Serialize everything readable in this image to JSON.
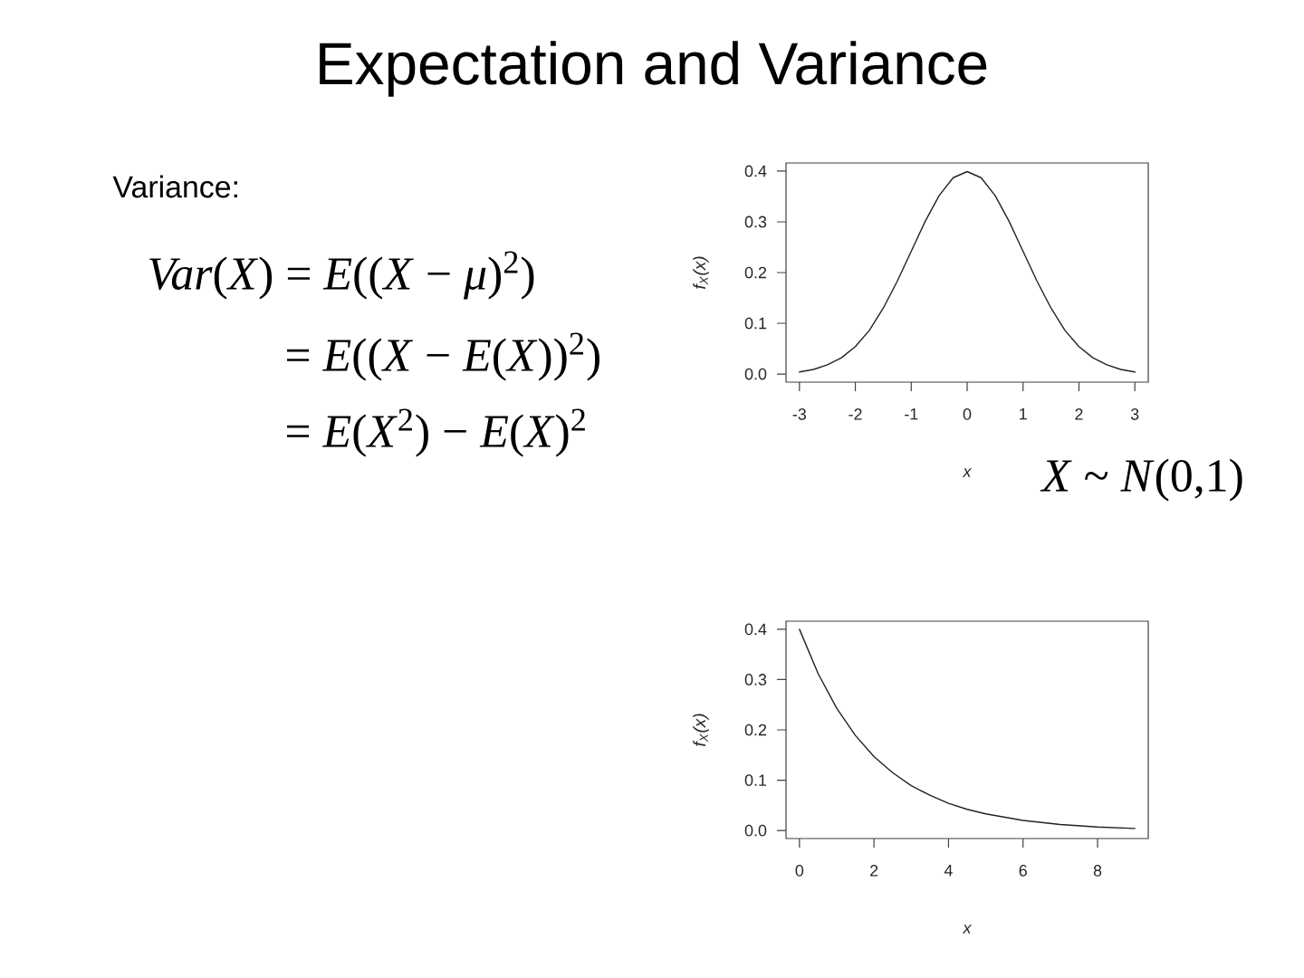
{
  "chart_data": [
    {
      "type": "line",
      "title": "Expectation and Variance",
      "xlabel": "x",
      "ylabel": "f$_{X}$(x)",
      "annotations": [
        "Variance:",
        "*Var*(*X*) = *E*((*X* − *μ*)$^{2}$)",
        "= *E*((*X* − *E*(*X*))$^{2}$)",
        "= *E*(*X*$^{2}$) − *E*(*X*)$^{2}$",
        "*X* ~ *N*(0,1)"
      ],
      "x": [
        -3,
        -2.75,
        -2.5,
        -2.25,
        -2,
        -1.75,
        -1.5,
        -1.25,
        -1,
        -0.75,
        -0.5,
        -0.25,
        0,
        0.25,
        0.5,
        0.75,
        1,
        1.25,
        1.5,
        1.75,
        2,
        2.25,
        2.5,
        2.75,
        3
      ],
      "values": [
        0.004,
        0.009,
        0.018,
        0.032,
        0.054,
        0.086,
        0.13,
        0.183,
        0.242,
        0.301,
        0.352,
        0.387,
        0.399,
        0.387,
        0.352,
        0.301,
        0.242,
        0.183,
        0.13,
        0.086,
        0.054,
        0.032,
        0.018,
        0.009,
        0.004
      ],
      "color": "#222222",
      "xlim": [
        -3.24,
        3.24
      ],
      "ylim": [
        -0.016,
        0.416
      ],
      "xticks": [
        -3,
        -2,
        -1,
        0,
        1,
        2,
        3
      ],
      "yticks": [
        {
          "value": 0,
          "label": "0.0"
        },
        0.1,
        0.2,
        0.3,
        0.4
      ]
    },
    {
      "type": "line",
      "xlabel": "x",
      "ylabel": "f$_{X}$(x)",
      "x": [
        0,
        0.5,
        1,
        1.5,
        2,
        2.5,
        3,
        3.5,
        4,
        4.5,
        5,
        6,
        7,
        8,
        9
      ],
      "values": [
        0.4,
        0.312,
        0.243,
        0.189,
        0.147,
        0.115,
        0.089,
        0.07,
        0.054,
        0.042,
        0.033,
        0.02,
        0.012,
        0.007,
        0.004
      ],
      "color": "#222222",
      "xlim": [
        -0.36,
        9.36
      ],
      "ylim": [
        -0.016,
        0.416
      ],
      "xticks": [
        0,
        2,
        4,
        6,
        8
      ],
      "yticks": [
        {
          "value": 0,
          "label": "0.0"
        },
        0.1,
        0.2,
        0.3,
        0.4
      ]
    }
  ]
}
